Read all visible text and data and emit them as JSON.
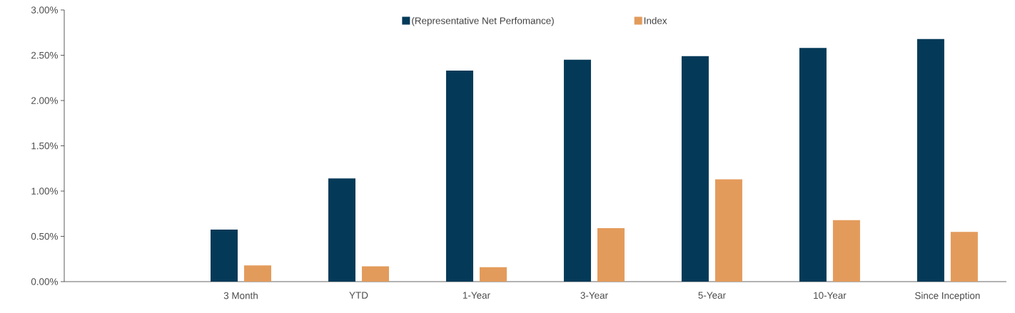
{
  "chart_data": {
    "type": "bar",
    "categories": [
      null,
      "3 Month",
      "YTD",
      "1-Year",
      "3-Year",
      "5-Year",
      "10-Year",
      "Since Inception"
    ],
    "series": [
      {
        "name": "(Representative Net Perfomance)",
        "color": "#043a58",
        "values": [
          null,
          0.575,
          1.14,
          2.33,
          2.45,
          2.49,
          2.58,
          2.68
        ]
      },
      {
        "name": "Index",
        "color": "#e39b5b",
        "values": [
          null,
          0.18,
          0.17,
          0.16,
          0.59,
          1.13,
          0.68,
          0.55
        ]
      }
    ],
    "ylim": [
      0,
      3
    ],
    "yticks": [
      {
        "value": 0,
        "label": "0.00%"
      },
      {
        "value": 0.5,
        "label": "0.50%"
      },
      {
        "value": 1,
        "label": "1.00%"
      },
      {
        "value": 1.5,
        "label": "1.50%"
      },
      {
        "value": 2,
        "label": "2.00%"
      },
      {
        "value": 2.5,
        "label": "2.50%"
      },
      {
        "value": 3,
        "label": "3.00%"
      }
    ],
    "legend": "top"
  }
}
